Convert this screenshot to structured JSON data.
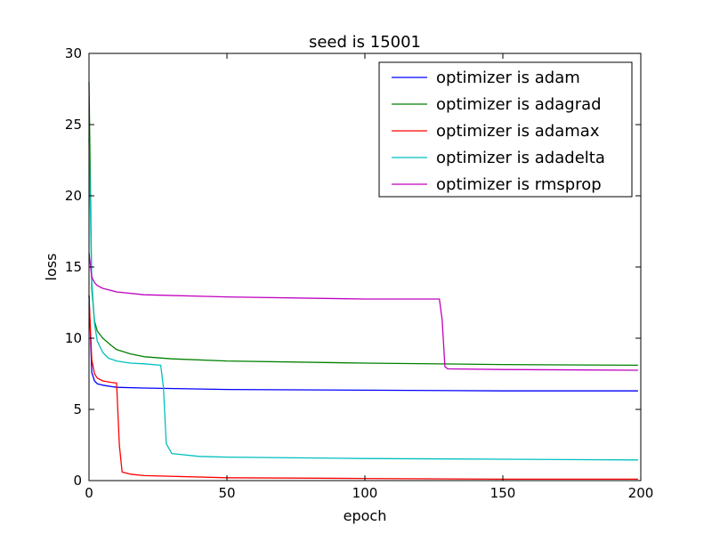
{
  "chart_data": {
    "type": "line",
    "title": "seed is  15001",
    "xlabel": "epoch",
    "ylabel": "loss",
    "xlim": [
      0,
      200
    ],
    "ylim": [
      0,
      30
    ],
    "xticks": [
      0,
      50,
      100,
      150,
      200
    ],
    "yticks": [
      0,
      5,
      10,
      15,
      20,
      25,
      30
    ],
    "grid": false,
    "legend_position": "top-right",
    "series": [
      {
        "name": "optimizer is adam",
        "color": "#0000ff",
        "x": [
          0,
          1,
          2,
          3,
          5,
          10,
          20,
          50,
          100,
          150,
          199
        ],
        "y": [
          13.0,
          7.6,
          7.0,
          6.8,
          6.7,
          6.55,
          6.5,
          6.4,
          6.35,
          6.3,
          6.3
        ]
      },
      {
        "name": "optimizer is adagrad",
        "color": "#008000",
        "x": [
          0,
          1,
          2,
          3,
          5,
          8,
          10,
          15,
          20,
          30,
          50,
          100,
          150,
          199
        ],
        "y": [
          28.0,
          13.5,
          11.2,
          10.5,
          10.0,
          9.5,
          9.2,
          8.9,
          8.7,
          8.55,
          8.4,
          8.25,
          8.15,
          8.1
        ]
      },
      {
        "name": "optimizer is adamax",
        "color": "#ff0000",
        "x": [
          0,
          1,
          2,
          3,
          5,
          8,
          10,
          11,
          12,
          15,
          20,
          50,
          100,
          150,
          199
        ],
        "y": [
          13.0,
          8.5,
          7.5,
          7.2,
          7.0,
          6.9,
          6.85,
          2.5,
          0.6,
          0.45,
          0.35,
          0.2,
          0.15,
          0.1,
          0.1
        ]
      },
      {
        "name": "optimizer is adadelta",
        "color": "#00bfbf",
        "x": [
          0,
          1,
          2,
          3,
          5,
          7,
          10,
          15,
          20,
          26,
          27,
          28,
          30,
          40,
          50,
          100,
          150,
          199
        ],
        "y": [
          24.0,
          14.0,
          11.0,
          9.8,
          9.0,
          8.6,
          8.4,
          8.25,
          8.2,
          8.1,
          6.5,
          2.6,
          1.9,
          1.7,
          1.65,
          1.55,
          1.5,
          1.45
        ]
      },
      {
        "name": "optimizer is rmsprop",
        "color": "#bf00bf",
        "x": [
          0,
          1,
          2,
          3,
          5,
          10,
          20,
          50,
          100,
          127,
          128,
          129,
          130,
          150,
          199
        ],
        "y": [
          16.0,
          14.3,
          13.9,
          13.7,
          13.5,
          13.25,
          13.05,
          12.9,
          12.75,
          12.75,
          11.3,
          8.0,
          7.85,
          7.8,
          7.75
        ]
      }
    ]
  }
}
